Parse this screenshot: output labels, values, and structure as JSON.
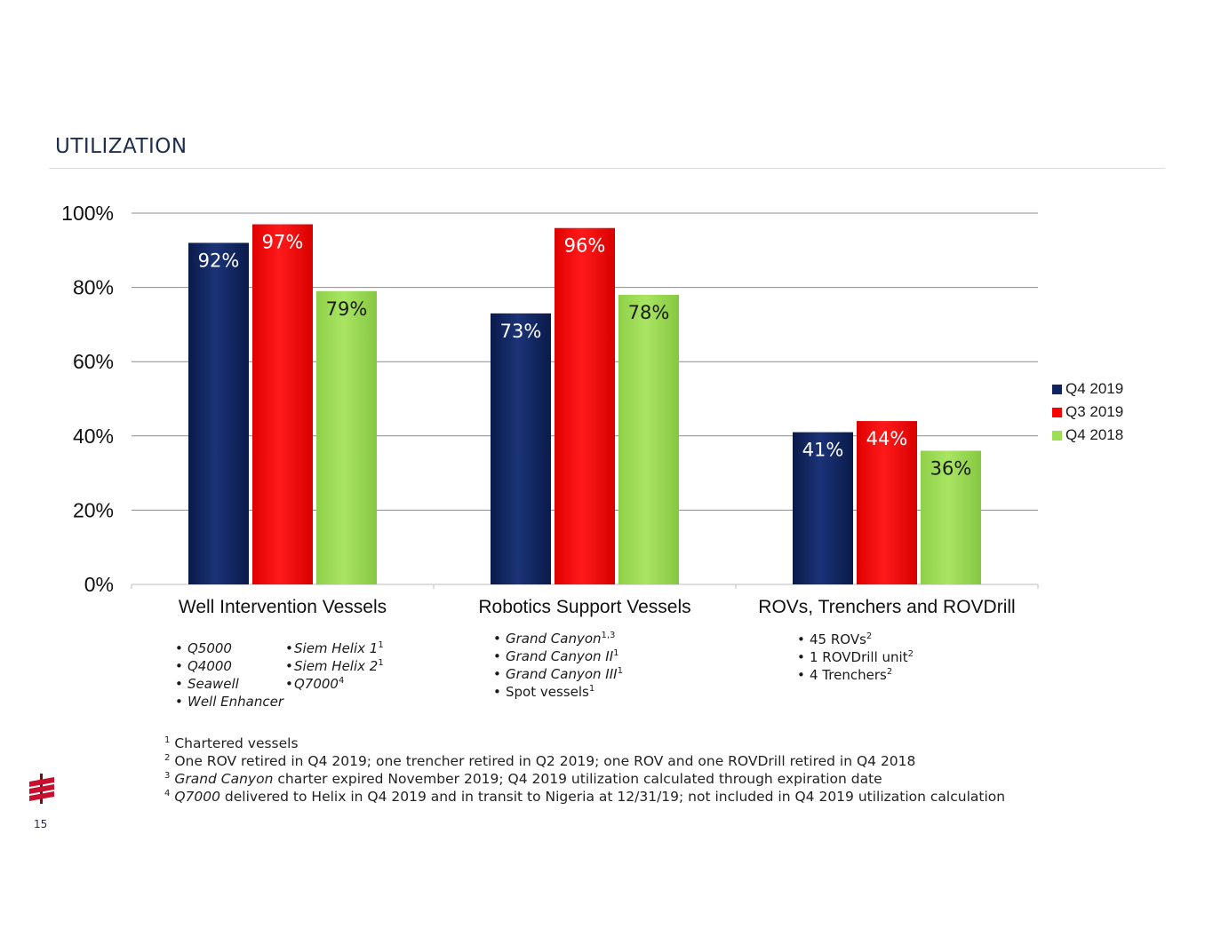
{
  "title": "UTILIZATION",
  "page_number": "15",
  "colors": {
    "q4_2019": "#0f2461",
    "q3_2019": "#ff0000",
    "q4_2018": "#9edd56",
    "grid": "#8c8c8c",
    "brand": "#c8102e"
  },
  "chart_data": {
    "type": "bar",
    "categories": [
      "Well Intervention Vessels",
      "Robotics Support Vessels",
      "ROVs, Trenchers and ROVDrill"
    ],
    "series": [
      {
        "name": "Q4 2019",
        "values": [
          92,
          73,
          41
        ],
        "labels": [
          "92%",
          "73%",
          "41%"
        ]
      },
      {
        "name": "Q3 2019",
        "values": [
          97,
          96,
          44
        ],
        "labels": [
          "97%",
          "96%",
          "44%"
        ]
      },
      {
        "name": "Q4 2018",
        "values": [
          79,
          78,
          36
        ],
        "labels": [
          "79%",
          "78%",
          "36%"
        ]
      }
    ],
    "yticks": [
      "0%",
      "20%",
      "40%",
      "60%",
      "80%",
      "100%"
    ],
    "ylim": [
      0,
      100
    ],
    "grid": true,
    "legend_position": "right"
  },
  "legend": [
    "Q4 2019",
    "Q3 2019",
    "Q4 2018"
  ],
  "vessels": {
    "well_col1": [
      "Q5000",
      "Q4000",
      "Seawell",
      "Well Enhancer"
    ],
    "well_col2": [
      "Siem Helix 1",
      "Siem Helix 2",
      "Q7000"
    ],
    "well_col2_sup": [
      "1",
      "1",
      "4"
    ],
    "robotics": [
      "Grand Canyon",
      "Grand Canyon II",
      "Grand Canyon III",
      "Spot vessels"
    ],
    "robotics_sup": [
      "1,3",
      "1",
      "1",
      "1"
    ],
    "rovs": [
      "45 ROVs",
      "1 ROVDrill unit",
      "4 Trenchers"
    ],
    "rovs_sup": [
      "2",
      "2",
      "2"
    ]
  },
  "footnotes": {
    "fn1_num": "1",
    "fn1_text": "Chartered vessels",
    "fn2_num": "2",
    "fn2_text": "One ROV retired in Q4 2019; one trencher retired in Q2 2019; one ROV and one ROVDrill retired in Q4 2018",
    "fn3_num": "3",
    "fn3_italic": "Grand Canyon",
    "fn3_text": " charter expired November 2019; Q4 2019 utilization calculated through expiration date",
    "fn4_num": "4",
    "fn4_italic": "Q7000",
    "fn4_text": " delivered to Helix in Q4 2019 and in transit to Nigeria at 12/31/19; not included in Q4 2019 utilization calculation"
  }
}
